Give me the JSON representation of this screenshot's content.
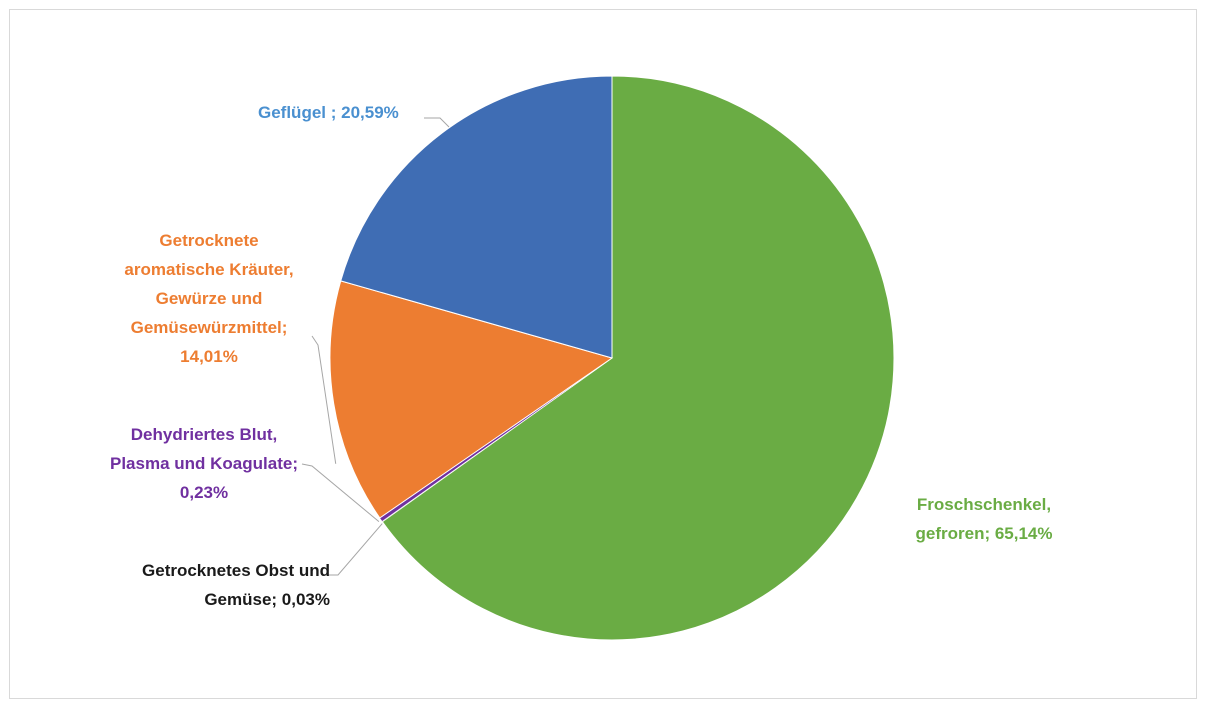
{
  "chart_data": {
    "type": "pie",
    "title": "",
    "start_angle_deg": 0,
    "direction": "clockwise",
    "slices": [
      {
        "label": "Froschschenkel,\ngefroren; 65,14%",
        "name": "Froschschenkel, gefroren",
        "value": 65.14,
        "color": "#6aac44"
      },
      {
        "label": "Getrocknetes Obst und\nGemüse; 0,03%",
        "name": "Getrocknetes Obst und Gemüse",
        "value": 0.03,
        "color": "#9e9e9e"
      },
      {
        "label": "Dehydriertes Blut,\nPlasma und Koagulate;\n0,23%",
        "name": "Dehydriertes Blut, Plasma und Koagulate",
        "value": 0.23,
        "color": "#7030a0"
      },
      {
        "label": "Getrocknete\naromatische Kräuter,\nGewürze und\nGemüsewürzmittel;\n14,01%",
        "name": "Getrocknete aromatische Kräuter, Gewürze und Gemüsewürzmittel",
        "value": 14.01,
        "color": "#ed7d31"
      },
      {
        "label": "Geflügel ; 20,59%",
        "name": "Geflügel",
        "value": 20.59,
        "color": "#3f6db4"
      }
    ],
    "label_colors": [
      "#6aac44",
      "#1a1a1a",
      "#7030a0",
      "#ed7d31",
      "#4a90d0"
    ],
    "legend": "none"
  }
}
